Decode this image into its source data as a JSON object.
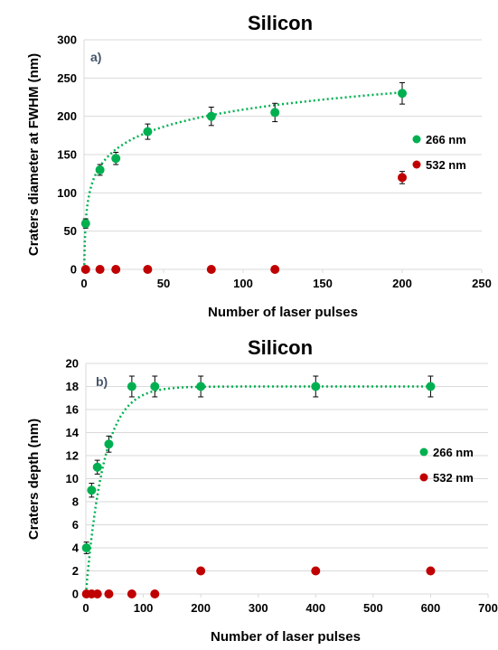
{
  "colors": {
    "green": "#00b050",
    "red": "#c00000",
    "fit": "#00b050",
    "panel_label": "#44546a"
  },
  "chart_data": [
    {
      "type": "scatter",
      "title": "Silicon",
      "panel_label": "a)",
      "xlabel": "Number of laser pulses",
      "ylabel": "Craters diameter at FWHM (nm)",
      "xlim": [
        0,
        250
      ],
      "ylim": [
        0,
        300
      ],
      "xticks": [
        "0",
        "50",
        "100",
        "150",
        "200",
        "250"
      ],
      "yticks": [
        "0",
        "50",
        "100",
        "150",
        "200",
        "250",
        "300"
      ],
      "grid": true,
      "legend_position": "right",
      "series": [
        {
          "name": "266 nm",
          "color": "#00b050",
          "x": [
            1,
            10,
            20,
            40,
            80,
            120,
            200
          ],
          "y": [
            60,
            130,
            145,
            180,
            200,
            205,
            230
          ],
          "yerr": [
            6,
            7,
            8,
            10,
            12,
            12,
            14
          ]
        },
        {
          "name": "532 nm",
          "color": "#c00000",
          "x": [
            1,
            10,
            20,
            40,
            80,
            120,
            200
          ],
          "y": [
            0,
            0,
            0,
            0,
            0,
            0,
            120
          ],
          "yerr": [
            0,
            0,
            0,
            0,
            0,
            0,
            8
          ]
        }
      ],
      "fit": {
        "series": "266 nm",
        "style": "dotted",
        "form": "log",
        "a": 60,
        "b": 32.3,
        "x_from": 0.05,
        "x_to": 200
      }
    },
    {
      "type": "scatter",
      "title": "Silicon",
      "panel_label": "b)",
      "xlabel": "Number of laser pulses",
      "ylabel": "Craters depth (nm)",
      "xlim": [
        0,
        700
      ],
      "ylim": [
        0,
        20
      ],
      "xticks": [
        "0",
        "100",
        "200",
        "300",
        "400",
        "500",
        "600",
        "700"
      ],
      "yticks": [
        "0",
        "2",
        "4",
        "6",
        "8",
        "10",
        "12",
        "14",
        "16",
        "18",
        "20"
      ],
      "grid": true,
      "legend_position": "right",
      "series": [
        {
          "name": "266 nm",
          "color": "#00b050",
          "x": [
            1,
            10,
            20,
            40,
            80,
            120,
            200,
            400,
            600
          ],
          "y": [
            4,
            9,
            11,
            13,
            18,
            18,
            18,
            18,
            18
          ],
          "yerr": [
            0.5,
            0.6,
            0.6,
            0.7,
            0.9,
            0.9,
            0.9,
            0.9,
            0.9
          ]
        },
        {
          "name": "532 nm",
          "color": "#c00000",
          "x": [
            1,
            10,
            20,
            40,
            80,
            120,
            200,
            400,
            600
          ],
          "y": [
            0,
            0,
            0,
            0,
            0,
            0,
            2,
            2,
            2
          ],
          "yerr": [
            0,
            0,
            0,
            0,
            0,
            0,
            0,
            0,
            0
          ]
        }
      ],
      "fit": {
        "series": "266 nm",
        "style": "dotted",
        "form": "saturating",
        "ymax": 18,
        "k": 0.032,
        "x_from": 0,
        "x_to": 600
      }
    }
  ]
}
